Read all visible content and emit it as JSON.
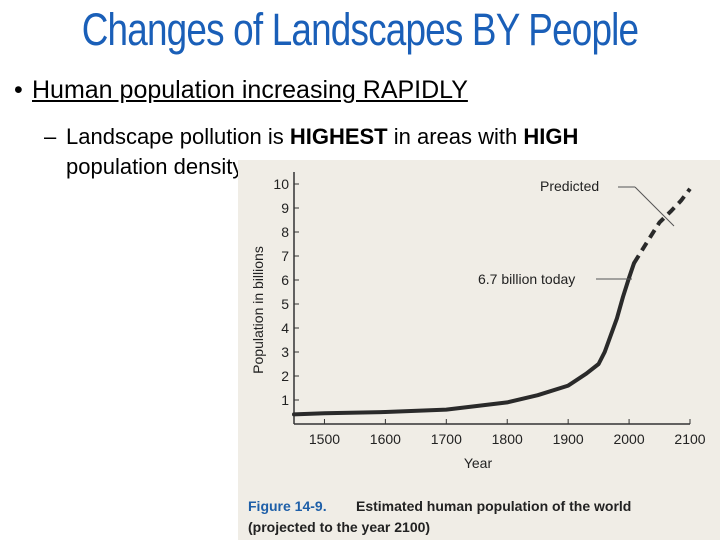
{
  "slide": {
    "title": "Changes of Landscapes BY People",
    "bullet_marker": "•",
    "bullet1": "Human population increasing RAPIDLY",
    "sub_marker": "–",
    "bullet2_part1": "Landscape pollution is ",
    "bullet2_bold1": "HIGHEST",
    "bullet2_part2": " in areas with ",
    "bullet2_bold2": "HIGH",
    "bullet2_line2": "population density."
  },
  "figure": {
    "caption_label": "Figure 14-9.",
    "caption_line1": "Estimated human population of the world",
    "caption_line2": "(projected to the year 2100)",
    "annotation_predicted": "Predicted",
    "annotation_today": "6.7 billion today"
  },
  "chart_data": {
    "type": "line",
    "xlabel": "Year",
    "ylabel": "Population in billions",
    "xlim": [
      1450,
      2100
    ],
    "ylim": [
      0,
      10.5
    ],
    "xticks": [
      1500,
      1600,
      1700,
      1800,
      1900,
      2000,
      2100
    ],
    "yticks": [
      1,
      2,
      3,
      4,
      5,
      6,
      7,
      8,
      9,
      10
    ],
    "grid": false,
    "series": [
      {
        "style": "solid",
        "x": [
          1450,
          1500,
          1600,
          1700,
          1750,
          1800,
          1850,
          1900,
          1930,
          1950,
          1960,
          1970,
          1980,
          1990,
          2000,
          2008
        ],
        "y": [
          0.4,
          0.45,
          0.5,
          0.6,
          0.75,
          0.9,
          1.2,
          1.6,
          2.1,
          2.5,
          3.0,
          3.7,
          4.4,
          5.3,
          6.1,
          6.7
        ]
      },
      {
        "style": "dashed",
        "x": [
          2008,
          2030,
          2050,
          2070,
          2085,
          2100
        ],
        "y": [
          6.7,
          7.6,
          8.4,
          8.9,
          9.3,
          9.8
        ]
      }
    ]
  },
  "colors": {
    "title": "#1a5fb8",
    "figure_bg": "#f0ede6",
    "line": "#2a2a2a",
    "caption_label": "#1e5fa8"
  }
}
